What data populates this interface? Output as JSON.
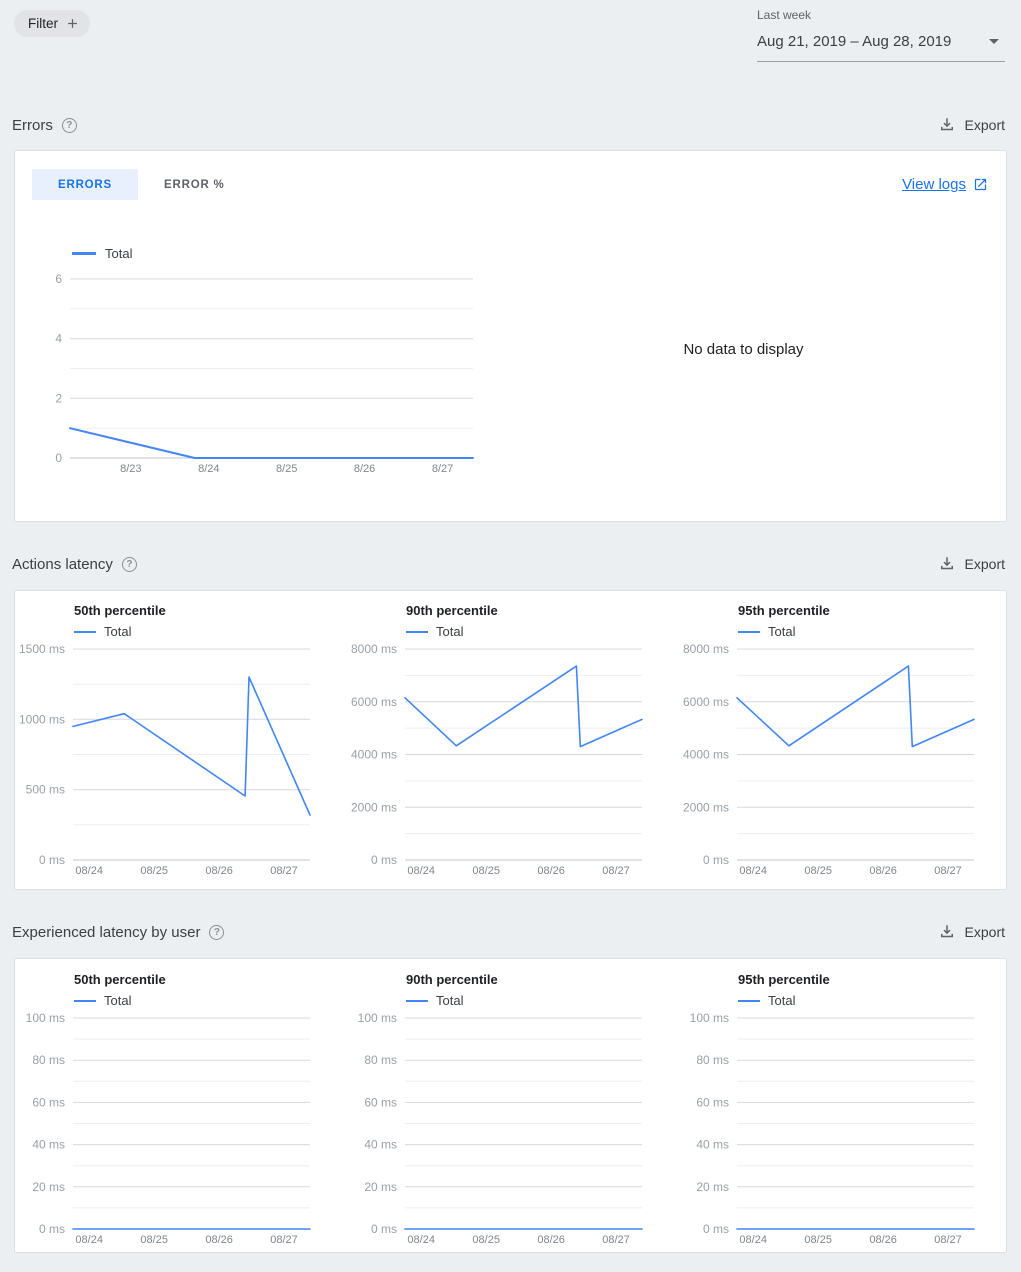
{
  "topbar": {
    "filter_label": "Filter",
    "date_range": {
      "label": "Last week",
      "value": "Aug 21, 2019 – Aug 28, 2019"
    }
  },
  "labels": {
    "export": "Export",
    "legend_total": "Total"
  },
  "sections": {
    "errors": {
      "title": "Errors"
    },
    "actions_latency": {
      "title": "Actions latency"
    },
    "experienced_latency": {
      "title": "Experienced latency by user"
    }
  },
  "errors_card": {
    "tabs": [
      "ERRORS",
      "ERROR %"
    ],
    "view_logs_label": "View logs",
    "no_data": "No data to display"
  },
  "colors": {
    "accent_blue": "#1a73e8",
    "line_blue": "#4285f4",
    "selected_tab_bg": "#e8f0fe",
    "page_bg": "#eceff1"
  },
  "chart_data": [
    {
      "panel": "Errors",
      "title": "",
      "type": "line",
      "legend": [
        "Total"
      ],
      "ylim": [
        0,
        6
      ],
      "y_tick_values": [
        0,
        2,
        4,
        6
      ],
      "y_tick_labels": [
        "0",
        "2",
        "4",
        "6"
      ],
      "y_minor": [
        1,
        3,
        5
      ],
      "xlim": [
        -0.78,
        4.39
      ],
      "x_tick_values": [
        0,
        1,
        2,
        3,
        4
      ],
      "x_tick_labels": [
        "8/23",
        "8/24",
        "8/25",
        "8/26",
        "8/27"
      ],
      "series": [
        {
          "name": "Total",
          "points": [
            [
              -0.78,
              1
            ],
            [
              0.82,
              0
            ],
            [
              4.39,
              0
            ]
          ]
        }
      ]
    },
    {
      "panel": "Actions latency",
      "title": "50th percentile",
      "type": "line",
      "legend": [
        "Total"
      ],
      "ylim": [
        0,
        1500
      ],
      "y_tick_values": [
        0,
        500,
        1000,
        1500
      ],
      "y_tick_labels": [
        "0 ms",
        "500 ms",
        "1000 ms",
        "1500 ms"
      ],
      "y_minor": [
        250,
        750,
        1250
      ],
      "xlim": [
        -0.25,
        3.4
      ],
      "x_tick_values": [
        0,
        1,
        2,
        3
      ],
      "x_tick_labels": [
        "08/24",
        "08/25",
        "08/26",
        "08/27"
      ],
      "series": [
        {
          "name": "Total",
          "points": [
            [
              -0.25,
              950
            ],
            [
              0.54,
              1040
            ],
            [
              2.4,
              455
            ],
            [
              2.46,
              1300
            ],
            [
              3.4,
              320
            ]
          ]
        }
      ]
    },
    {
      "panel": "Actions latency",
      "title": "90th percentile",
      "type": "line",
      "legend": [
        "Total"
      ],
      "ylim": [
        0,
        8000
      ],
      "y_tick_values": [
        0,
        2000,
        4000,
        6000,
        8000
      ],
      "y_tick_labels": [
        "0 ms",
        "2000 ms",
        "4000 ms",
        "6000 ms",
        "8000 ms"
      ],
      "y_minor": [
        1000,
        3000,
        5000,
        7000
      ],
      "xlim": [
        -0.25,
        3.4
      ],
      "x_tick_values": [
        0,
        1,
        2,
        3
      ],
      "x_tick_labels": [
        "08/24",
        "08/25",
        "08/26",
        "08/27"
      ],
      "series": [
        {
          "name": "Total",
          "points": [
            [
              -0.25,
              6150
            ],
            [
              0.54,
              4330
            ],
            [
              2.39,
              7350
            ],
            [
              2.45,
              4300
            ],
            [
              3.4,
              5330
            ]
          ]
        }
      ]
    },
    {
      "panel": "Actions latency",
      "title": "95th percentile",
      "type": "line",
      "legend": [
        "Total"
      ],
      "ylim": [
        0,
        8000
      ],
      "y_tick_values": [
        0,
        2000,
        4000,
        6000,
        8000
      ],
      "y_tick_labels": [
        "0 ms",
        "2000 ms",
        "4000 ms",
        "6000 ms",
        "8000 ms"
      ],
      "y_minor": [
        1000,
        3000,
        5000,
        7000
      ],
      "xlim": [
        -0.25,
        3.4
      ],
      "x_tick_values": [
        0,
        1,
        2,
        3
      ],
      "x_tick_labels": [
        "08/24",
        "08/25",
        "08/26",
        "08/27"
      ],
      "series": [
        {
          "name": "Total",
          "points": [
            [
              -0.25,
              6150
            ],
            [
              0.55,
              4330
            ],
            [
              2.39,
              7350
            ],
            [
              2.45,
              4300
            ],
            [
              3.4,
              5330
            ]
          ]
        }
      ]
    },
    {
      "panel": "Experienced latency by user",
      "title": "50th percentile",
      "type": "line",
      "legend": [
        "Total"
      ],
      "ylim": [
        0,
        100
      ],
      "y_tick_values": [
        0,
        20,
        40,
        60,
        80,
        100
      ],
      "y_tick_labels": [
        "0 ms",
        "20 ms",
        "40 ms",
        "60 ms",
        "80 ms",
        "100 ms"
      ],
      "y_minor": [
        10,
        30,
        50,
        70,
        90
      ],
      "xlim": [
        -0.25,
        3.4
      ],
      "x_tick_values": [
        0,
        1,
        2,
        3
      ],
      "x_tick_labels": [
        "08/24",
        "08/25",
        "08/26",
        "08/27"
      ],
      "series": [
        {
          "name": "Total",
          "points": [
            [
              -0.25,
              0
            ],
            [
              3.4,
              0
            ]
          ]
        }
      ]
    },
    {
      "panel": "Experienced latency by user",
      "title": "90th percentile",
      "type": "line",
      "legend": [
        "Total"
      ],
      "ylim": [
        0,
        100
      ],
      "y_tick_values": [
        0,
        20,
        40,
        60,
        80,
        100
      ],
      "y_tick_labels": [
        "0 ms",
        "20 ms",
        "40 ms",
        "60 ms",
        "80 ms",
        "100 ms"
      ],
      "y_minor": [
        10,
        30,
        50,
        70,
        90
      ],
      "xlim": [
        -0.25,
        3.4
      ],
      "x_tick_values": [
        0,
        1,
        2,
        3
      ],
      "x_tick_labels": [
        "08/24",
        "08/25",
        "08/26",
        "08/27"
      ],
      "series": [
        {
          "name": "Total",
          "points": [
            [
              -0.25,
              0
            ],
            [
              3.4,
              0
            ]
          ]
        }
      ]
    },
    {
      "panel": "Experienced latency by user",
      "title": "95th percentile",
      "type": "line",
      "legend": [
        "Total"
      ],
      "ylim": [
        0,
        100
      ],
      "y_tick_values": [
        0,
        20,
        40,
        60,
        80,
        100
      ],
      "y_tick_labels": [
        "0 ms",
        "20 ms",
        "40 ms",
        "60 ms",
        "80 ms",
        "100 ms"
      ],
      "y_minor": [
        10,
        30,
        50,
        70,
        90
      ],
      "xlim": [
        -0.25,
        3.4
      ],
      "x_tick_values": [
        0,
        1,
        2,
        3
      ],
      "x_tick_labels": [
        "08/24",
        "08/25",
        "08/26",
        "08/27"
      ],
      "series": [
        {
          "name": "Total",
          "points": [
            [
              -0.25,
              0
            ],
            [
              3.4,
              0
            ]
          ]
        }
      ]
    }
  ]
}
